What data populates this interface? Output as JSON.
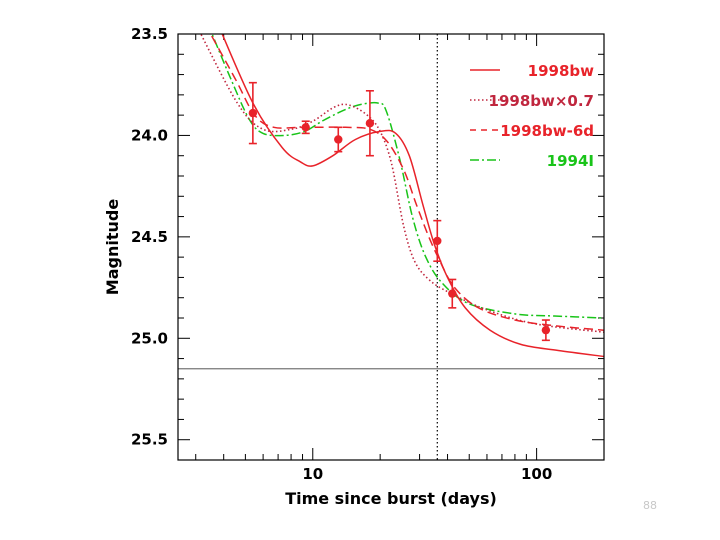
{
  "page": {
    "page_number": "88"
  },
  "chart_data": {
    "type": "line",
    "title": "",
    "xlabel": "Time since burst (days)",
    "ylabel": "Magnitude",
    "x_scale": "log",
    "xlim": [
      2.5,
      200
    ],
    "ylim": [
      25.6,
      23.5
    ],
    "y_inverted": true,
    "x_ticks": [
      10,
      100
    ],
    "y_ticks": [
      23.5,
      24.0,
      24.5,
      25.0,
      25.5
    ],
    "y_tick_labels": [
      "23.5",
      "24.0",
      "24.5",
      "25.0",
      "25.5"
    ],
    "x_tick_labels": [
      "10",
      "100"
    ],
    "grid": false,
    "legend_position": "top-right",
    "series": [
      {
        "name": "1998bw",
        "style": "solid",
        "color": "#e8232a",
        "points": [
          [
            3.8,
            23.46
          ],
          [
            5.4,
            23.84
          ],
          [
            7.3,
            24.06
          ],
          [
            8.8,
            24.13
          ],
          [
            10.0,
            24.15
          ],
          [
            12.3,
            24.1
          ],
          [
            15.5,
            24.02
          ],
          [
            20.0,
            23.98
          ],
          [
            23.5,
            23.99
          ],
          [
            27.0,
            24.1
          ],
          [
            31.0,
            24.34
          ],
          [
            35.0,
            24.54
          ],
          [
            40.0,
            24.7
          ],
          [
            48.0,
            24.85
          ],
          [
            62.0,
            24.96
          ],
          [
            85.0,
            25.03
          ],
          [
            125.0,
            25.06
          ],
          [
            200.0,
            25.09
          ]
        ]
      },
      {
        "name": "1998bw×0.7",
        "style": "dotted",
        "color": "#c0263e",
        "points": [
          [
            3.0,
            23.45
          ],
          [
            4.6,
            23.84
          ],
          [
            6.0,
            23.97
          ],
          [
            8.0,
            23.97
          ],
          [
            10.0,
            23.93
          ],
          [
            12.5,
            23.86
          ],
          [
            14.5,
            23.85
          ],
          [
            17.5,
            23.9
          ],
          [
            20.0,
            23.98
          ],
          [
            22.5,
            24.14
          ],
          [
            25.5,
            24.45
          ],
          [
            28.5,
            24.62
          ],
          [
            33.0,
            24.71
          ],
          [
            40.0,
            24.77
          ],
          [
            60.0,
            24.86
          ],
          [
            100.0,
            24.93
          ],
          [
            200.0,
            24.97
          ]
        ]
      },
      {
        "name": "1998bw-6d",
        "style": "dashed",
        "color": "#e8232a",
        "points": [
          [
            3.3,
            23.45
          ],
          [
            4.5,
            23.72
          ],
          [
            5.5,
            23.9
          ],
          [
            6.7,
            23.96
          ],
          [
            9.0,
            23.96
          ],
          [
            14.0,
            23.96
          ],
          [
            18.0,
            23.97
          ],
          [
            21.5,
            24.03
          ],
          [
            25.5,
            24.17
          ],
          [
            29.0,
            24.34
          ],
          [
            33.0,
            24.5
          ],
          [
            37.0,
            24.62
          ],
          [
            43.0,
            24.75
          ],
          [
            55.0,
            24.85
          ],
          [
            80.0,
            24.91
          ],
          [
            125.0,
            24.94
          ],
          [
            200.0,
            24.96
          ]
        ]
      },
      {
        "name": "1994I",
        "style": "dashdot",
        "color": "#19c419",
        "points": [
          [
            3.4,
            23.45
          ],
          [
            4.3,
            23.72
          ],
          [
            5.2,
            23.92
          ],
          [
            6.0,
            23.99
          ],
          [
            7.5,
            24.0
          ],
          [
            9.2,
            23.98
          ],
          [
            11.0,
            23.93
          ],
          [
            13.5,
            23.88
          ],
          [
            16.0,
            23.85
          ],
          [
            19.5,
            23.84
          ],
          [
            21.3,
            23.88
          ],
          [
            24.5,
            24.12
          ],
          [
            28.0,
            24.41
          ],
          [
            32.0,
            24.6
          ],
          [
            38.0,
            24.73
          ],
          [
            50.0,
            24.83
          ],
          [
            80.0,
            24.88
          ],
          [
            120.0,
            24.89
          ],
          [
            200.0,
            24.9
          ]
        ]
      }
    ],
    "observations": {
      "color": "#e8232a",
      "points": [
        {
          "x": 5.4,
          "y": 23.89,
          "err_low": 0.15,
          "err_high": 0.15
        },
        {
          "x": 9.3,
          "y": 23.96,
          "err_low": 0.03,
          "err_high": 0.03
        },
        {
          "x": 13.0,
          "y": 24.02,
          "err_low": 0.06,
          "err_high": 0.06
        },
        {
          "x": 18.0,
          "y": 23.94,
          "err_low": 0.16,
          "err_high": 0.16
        },
        {
          "x": 36.0,
          "y": 24.52,
          "err_low": 0.1,
          "err_high": 0.1
        },
        {
          "x": 42.0,
          "y": 24.78,
          "err_low": 0.07,
          "err_high": 0.07
        },
        {
          "x": 110.0,
          "y": 24.96,
          "err_low": 0.05,
          "err_high": 0.05
        }
      ]
    },
    "reference_lines": [
      {
        "orientation": "horizontal",
        "value": 25.15,
        "style": "solid",
        "color": "#777777"
      },
      {
        "orientation": "vertical",
        "value": 36.0,
        "style": "dotted",
        "color": "#000000"
      }
    ]
  }
}
